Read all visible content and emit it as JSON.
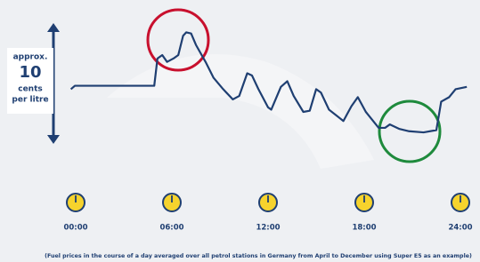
{
  "chart_data": {
    "type": "line",
    "annotation": [
      "approx.",
      "10",
      "cents",
      "per litre"
    ],
    "footnote": "(Fuel prices in the course of a day averaged over all petrol stations in Germany from April to December using Super E5 as an example)",
    "color": "#1f3f72",
    "ylim": [
      0,
      10
    ],
    "xlim": [
      0,
      24
    ],
    "xticks": [
      {
        "value": 0,
        "label": "00:00"
      },
      {
        "value": 6,
        "label": "06:00"
      },
      {
        "value": 12,
        "label": "12:00"
      },
      {
        "value": 18,
        "label": "18:00"
      },
      {
        "value": 24,
        "label": "24:00"
      }
    ],
    "x": [
      -0.3,
      -0.05,
      3.6,
      4.7,
      4.9,
      5.1,
      5.4,
      5.7,
      6.1,
      6.4,
      6.7,
      6.9,
      7.2,
      7.5,
      8.1,
      8.6,
      9.2,
      9.8,
      10.2,
      10.7,
      11.0,
      11.4,
      12.0,
      12.2,
      12.8,
      13.2,
      13.6,
      14.2,
      14.6,
      15.0,
      15.3,
      15.8,
      16.7,
      17.2,
      17.6,
      18.1,
      18.9,
      19.3,
      19.6,
      20.2,
      20.8,
      21.7,
      22.5,
      22.8,
      23.3,
      23.7,
      24.4
    ],
    "values": [
      4.5,
      4.8,
      4.8,
      4.8,
      4.8,
      7.2,
      7.5,
      6.9,
      7.2,
      7.5,
      9.2,
      9.5,
      9.4,
      8.4,
      6.9,
      5.5,
      4.5,
      3.6,
      3.9,
      5.9,
      5.7,
      4.5,
      2.9,
      2.7,
      4.7,
      5.2,
      3.9,
      2.5,
      2.6,
      4.5,
      4.2,
      2.7,
      1.7,
      3.0,
      3.8,
      2.5,
      1.1,
      1.1,
      1.4,
      1.0,
      0.8,
      0.7,
      0.9,
      3.4,
      3.8,
      4.5,
      4.7
    ]
  }
}
